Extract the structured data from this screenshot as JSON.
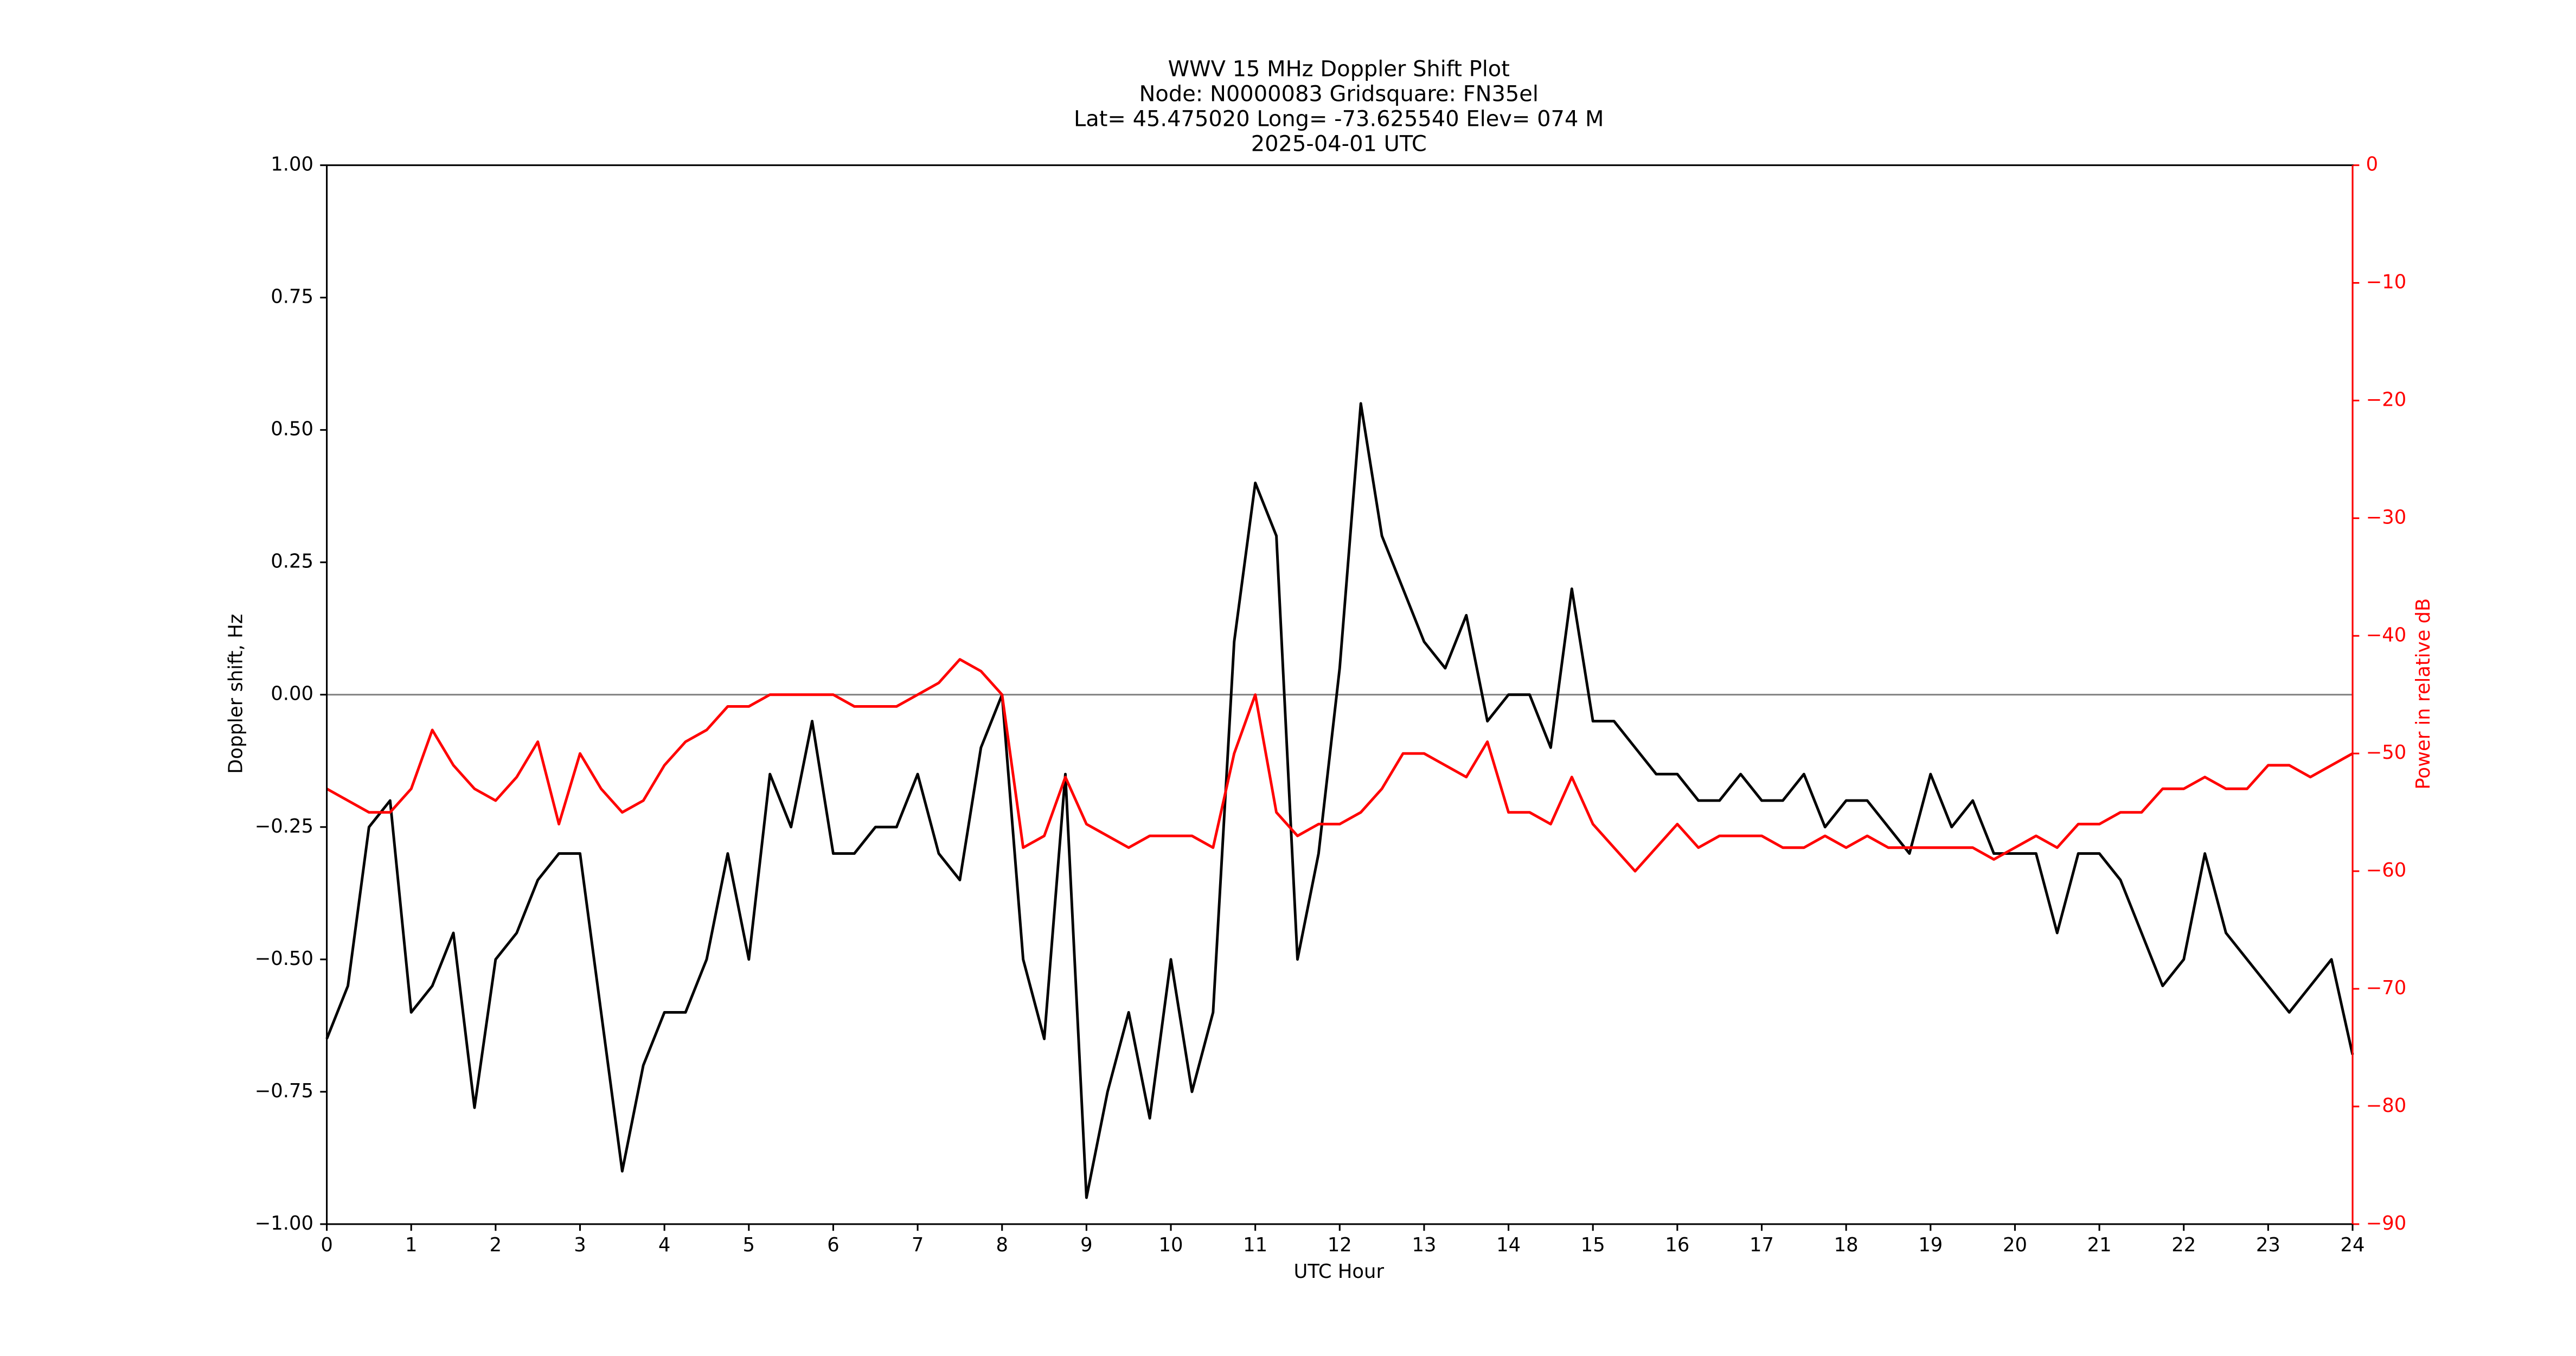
{
  "chart_data": {
    "type": "line",
    "title": [
      "WWV 15 MHz Doppler Shift Plot",
      "Node:  N0000083     Gridsquare:  FN35el",
      "Lat= 45.475020    Long= -73.625540    Elev= 074 M",
      "2025-04-01  UTC"
    ],
    "xlabel": "UTC Hour",
    "ylabel": "Doppler shift, Hz",
    "y2label": "Power in relative dB",
    "x": [
      0,
      0.25,
      0.5,
      0.75,
      1,
      1.25,
      1.5,
      1.75,
      2,
      2.25,
      2.5,
      2.75,
      3,
      3.25,
      3.5,
      3.75,
      4,
      4.25,
      4.5,
      4.75,
      5,
      5.25,
      5.5,
      5.75,
      6,
      6.25,
      6.5,
      6.75,
      7,
      7.25,
      7.5,
      7.75,
      8,
      8.25,
      8.5,
      8.75,
      9,
      9.25,
      9.5,
      9.75,
      10,
      10.25,
      10.5,
      10.75,
      11,
      11.25,
      11.5,
      11.75,
      12,
      12.25,
      12.5,
      12.75,
      13,
      13.25,
      13.5,
      13.75,
      14,
      14.25,
      14.5,
      14.75,
      15,
      15.25,
      15.5,
      15.75,
      16,
      16.25,
      16.5,
      16.75,
      17,
      17.25,
      17.5,
      17.75,
      18,
      18.25,
      18.5,
      18.75,
      19,
      19.25,
      19.5,
      19.75,
      20,
      20.25,
      20.5,
      20.75,
      21,
      21.25,
      21.5,
      21.75,
      22,
      22.25,
      22.5,
      22.75,
      23,
      23.25,
      23.5,
      23.75,
      24
    ],
    "series": [
      {
        "color": "#000000",
        "values": [
          -0.65,
          -0.55,
          -0.25,
          -0.2,
          -0.6,
          -0.55,
          -0.45,
          -0.78,
          -0.5,
          -0.45,
          -0.35,
          -0.3,
          -0.3,
          -0.6,
          -0.9,
          -0.7,
          -0.6,
          -0.6,
          -0.5,
          -0.3,
          -0.5,
          -0.15,
          -0.25,
          -0.05,
          -0.3,
          -0.3,
          -0.25,
          -0.25,
          -0.15,
          -0.3,
          -0.35,
          -0.1,
          0.0,
          -0.5,
          -0.65,
          -0.15,
          -0.95,
          -0.75,
          -0.6,
          -0.8,
          -0.5,
          -0.75,
          -0.6,
          0.1,
          0.4,
          0.3,
          -0.5,
          -0.3,
          0.05,
          0.55,
          0.3,
          0.2,
          0.1,
          0.05,
          0.15,
          -0.05,
          0.0,
          0.0,
          -0.1,
          0.2,
          -0.05,
          -0.05,
          -0.1,
          -0.15,
          -0.15,
          -0.2,
          -0.2,
          -0.15,
          -0.2,
          -0.2,
          -0.15,
          -0.25,
          -0.2,
          -0.2,
          -0.25,
          -0.3,
          -0.15,
          -0.25,
          -0.2,
          -0.3,
          -0.3,
          -0.3,
          -0.45,
          -0.3,
          -0.3,
          -0.35,
          -0.45,
          -0.55,
          -0.5,
          -0.3,
          -0.45,
          -0.5,
          -0.55,
          -0.6,
          -0.55,
          -0.5,
          -0.68
        ]
      },
      {
        "color": "#ff0000",
        "axis": "y2",
        "values": [
          -53,
          -54,
          -55,
          -55,
          -53,
          -48,
          -51,
          -53,
          -54,
          -52,
          -49,
          -56,
          -50,
          -53,
          -55,
          -54,
          -51,
          -49,
          -48,
          -46,
          -46,
          -45,
          -45,
          -45,
          -45,
          -46,
          -46,
          -46,
          -45,
          -44,
          -42,
          -43,
          -45,
          -58,
          -57,
          -52,
          -56,
          -57,
          -58,
          -57,
          -57,
          -57,
          -58,
          -50,
          -45,
          -55,
          -57,
          -56,
          -56,
          -55,
          -53,
          -50,
          -50,
          -51,
          -52,
          -49,
          -55,
          -55,
          -56,
          -52,
          -56,
          -58,
          -60,
          -58,
          -56,
          -58,
          -57,
          -57,
          -57,
          -58,
          -58,
          -57,
          -58,
          -57,
          -58,
          -58,
          -58,
          -58,
          -58,
          -59,
          -58,
          -57,
          -58,
          -56,
          -56,
          -55,
          -55,
          -53,
          -53,
          -52,
          -53,
          -53,
          -51,
          -51,
          -52,
          -51,
          -50
        ]
      }
    ],
    "hline": 0,
    "xlim": [
      0,
      24
    ],
    "xticks": [
      0,
      1,
      2,
      3,
      4,
      5,
      6,
      7,
      8,
      9,
      10,
      11,
      12,
      13,
      14,
      15,
      16,
      17,
      18,
      19,
      20,
      21,
      22,
      23,
      24
    ],
    "ylim": [
      -1,
      1
    ],
    "yticks": [
      {
        "value": -1,
        "label": "−1.00"
      },
      {
        "value": -0.75,
        "label": "−0.75"
      },
      {
        "value": -0.5,
        "label": "−0.50"
      },
      {
        "value": -0.25,
        "label": "−0.25"
      },
      {
        "value": 0,
        "label": "0.00"
      },
      {
        "value": 0.25,
        "label": "0.25"
      },
      {
        "value": 0.5,
        "label": "0.50"
      },
      {
        "value": 0.75,
        "label": "0.75"
      },
      {
        "value": 1,
        "label": "1.00"
      }
    ],
    "y2lim": [
      -90,
      0
    ],
    "y2ticks": [
      {
        "value": -90,
        "label": "−90"
      },
      {
        "value": -80,
        "label": "−80"
      },
      {
        "value": -70,
        "label": "−70"
      },
      {
        "value": -60,
        "label": "−60"
      },
      {
        "value": -50,
        "label": "−50"
      },
      {
        "value": -40,
        "label": "−40"
      },
      {
        "value": -30,
        "label": "−30"
      },
      {
        "value": -20,
        "label": "−20"
      },
      {
        "value": -10,
        "label": "−10"
      },
      0
    ],
    "y2color": "#ff0000"
  }
}
